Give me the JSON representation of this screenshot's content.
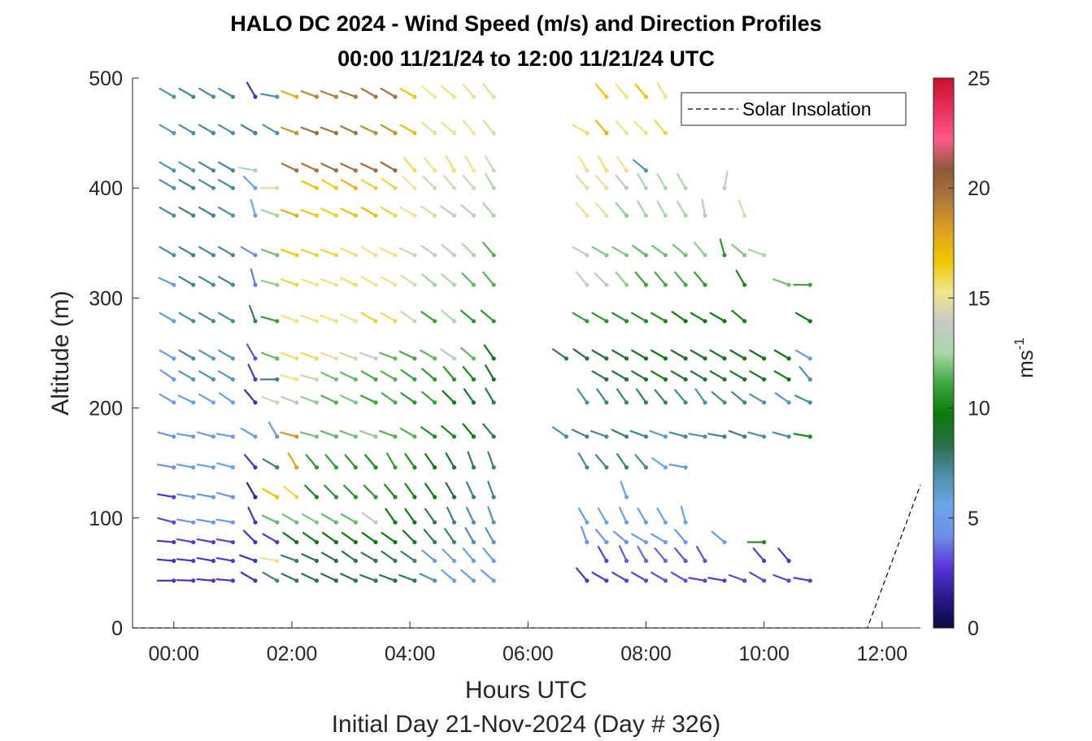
{
  "chart_data": {
    "type": "wind-barb-profile",
    "title": "HALO DC 2024 - Wind Speed (m/s) and Direction Profiles",
    "subtitle": "00:00 11/21/24 to 12:00 11/21/24  UTC",
    "xlabel": "Hours UTC",
    "xlabel2": "Initial Day 21-Nov-2024 (Day # 326)",
    "ylabel": "Altitude (m)",
    "xlim": [
      -0.7,
      12.65
    ],
    "ylim": [
      0,
      500
    ],
    "xticks": [
      0,
      2,
      4,
      6,
      8,
      10,
      12
    ],
    "xtick_labels": [
      "00:00",
      "02:00",
      "04:00",
      "06:00",
      "08:00",
      "10:00",
      "12:00"
    ],
    "yticks": [
      0,
      100,
      200,
      300,
      400,
      500
    ],
    "ytick_labels": [
      "0",
      "100",
      "200",
      "300",
      "400",
      "500"
    ],
    "colorbar": {
      "label": "ms",
      "label_exp": "-1",
      "range": [
        0,
        25
      ],
      "ticks": [
        0,
        5,
        10,
        15,
        20,
        25
      ],
      "tick_labels": [
        "0",
        "5",
        "10",
        "15",
        "20",
        "25"
      ],
      "colors": [
        "#0a0a3c",
        "#2a1a8c",
        "#5a35d8",
        "#6e8de8",
        "#6aa6e8",
        "#4d8fa8",
        "#2a6e4a",
        "#0a7a0a",
        "#3fa63f",
        "#a8d8a8",
        "#c8c8c8",
        "#f0e68c",
        "#f0c800",
        "#e0a020",
        "#b07838",
        "#8b5a3c",
        "#ff5a8c",
        "#e8305a",
        "#c8102e"
      ]
    },
    "legend": {
      "label": "Solar Insolation",
      "position": "top-right",
      "style": "dashed"
    },
    "solar_insolation": {
      "x": [
        -0.7,
        11.75,
        12.65
      ],
      "y": [
        0,
        0,
        130
      ]
    },
    "altitudes_m": [
      43,
      61,
      78,
      96,
      119,
      146,
      174,
      205,
      226,
      245,
      279,
      312,
      339,
      375,
      400,
      416,
      450,
      483
    ],
    "times_h": [
      0.0,
      0.33,
      0.67,
      1.0,
      1.38,
      1.75,
      2.08,
      2.42,
      2.75,
      3.08,
      3.42,
      3.75,
      4.08,
      4.42,
      4.75,
      5.08,
      5.42,
      6.65,
      7.0,
      7.33,
      7.67,
      8.0,
      8.33,
      8.67,
      9.0,
      9.33,
      9.67,
      10.0,
      10.42,
      10.78
    ],
    "speed_unit": "m/s",
    "barbs_note": "speed (m/s) and direction (deg, meteorological) per altitude row; null = no data",
    "speeds": [
      [
        2.6,
        2.5,
        2.5,
        2.6,
        2.4,
        7.4,
        8.0,
        8.2,
        8.5,
        8.4,
        8.2,
        8.4,
        8.0,
        6.8,
        5.0,
        5.0,
        5.0,
        null,
        2.6,
        2.8,
        2.9,
        3.0,
        3.2,
        3.2,
        3.0,
        2.8,
        3.0,
        3.1,
        3.0,
        2.8
      ],
      [
        2.4,
        2.6,
        2.5,
        2.7,
        2.3,
        15.2,
        7.8,
        8.4,
        8.4,
        8.2,
        8.1,
        8.0,
        7.6,
        6.0,
        5.4,
        5.2,
        5.0,
        null,
        null,
        3.0,
        3.4,
        3.6,
        3.5,
        3.2,
        3.2,
        null,
        null,
        2.8,
        2.6,
        null
      ],
      [
        2.5,
        2.8,
        2.7,
        2.9,
        2.4,
        2.6,
        9.2,
        9.4,
        9.6,
        9.8,
        9.7,
        9.5,
        9.0,
        8.0,
        7.6,
        7.0,
        6.6,
        null,
        4.4,
        4.5,
        4.4,
        4.8,
        4.7,
        4.6,
        null,
        4.8,
        null,
        10.2,
        null,
        null
      ],
      [
        3.0,
        4.6,
        4.8,
        4.9,
        2.4,
        11.6,
        11.8,
        12.0,
        11.6,
        11.6,
        13.6,
        9.8,
        9.4,
        8.0,
        7.6,
        7.0,
        6.6,
        null,
        5.8,
        5.6,
        5.0,
        5.8,
        5.6,
        5.6,
        null,
        null,
        null,
        null,
        null,
        null
      ],
      [
        2.8,
        4.6,
        4.8,
        4.6,
        1.6,
        16.8,
        16.0,
        10.2,
        10.6,
        10.6,
        10.6,
        10.2,
        10.0,
        9.4,
        8.6,
        7.6,
        7.4,
        null,
        null,
        null,
        5.6,
        null,
        null,
        null,
        null,
        null,
        null,
        null,
        null,
        null
      ],
      [
        4.6,
        5.6,
        5.4,
        5.4,
        2.4,
        7.6,
        18.0,
        10.8,
        10.8,
        10.6,
        10.2,
        10.8,
        10.2,
        9.6,
        9.0,
        8.0,
        7.6,
        null,
        7.2,
        7.4,
        7.6,
        7.2,
        5.4,
        5.8,
        null,
        null,
        null,
        null,
        null,
        null
      ],
      [
        4.6,
        5.0,
        5.0,
        5.0,
        5.2,
        6.0,
        18.4,
        11.8,
        11.6,
        11.8,
        12.2,
        11.4,
        11.4,
        10.4,
        10.2,
        9.6,
        8.0,
        7.0,
        7.4,
        7.2,
        7.6,
        7.4,
        6.2,
        7.2,
        6.8,
        7.4,
        7.6,
        6.8,
        7.0,
        10.2
      ],
      [
        4.8,
        5.2,
        5.6,
        5.0,
        2.2,
        14.4,
        13.2,
        12.2,
        11.4,
        12.0,
        11.0,
        11.2,
        10.6,
        11.0,
        9.8,
        8.8,
        8.0,
        null,
        7.0,
        7.4,
        7.6,
        7.8,
        7.6,
        7.4,
        7.0,
        7.2,
        7.4,
        6.8,
        6.6,
        7.2
      ],
      [
        4.8,
        6.6,
        6.8,
        6.4,
        2.6,
        7.6,
        15.4,
        14.4,
        11.8,
        11.6,
        11.2,
        11.4,
        11.0,
        10.6,
        10.6,
        10.2,
        9.2,
        null,
        null,
        8.2,
        8.6,
        9.0,
        9.4,
        9.0,
        8.6,
        8.8,
        9.2,
        9.0,
        9.6,
        6.8
      ],
      [
        5.2,
        7.2,
        6.4,
        6.4,
        3.2,
        11.6,
        15.6,
        15.8,
        15.0,
        14.6,
        14.0,
        11.6,
        11.2,
        11.6,
        13.0,
        11.6,
        9.2,
        8.0,
        8.4,
        8.6,
        8.8,
        9.2,
        9.6,
        9.0,
        8.8,
        9.2,
        9.4,
        9.6,
        9.6,
        5.2
      ],
      [
        6.0,
        7.0,
        7.2,
        7.0,
        7.8,
        10.8,
        15.4,
        15.4,
        15.4,
        15.2,
        16.2,
        15.8,
        14.4,
        11.0,
        12.8,
        10.6,
        10.6,
        null,
        10.8,
        10.6,
        10.4,
        10.4,
        10.2,
        9.8,
        9.8,
        9.6,
        10.0,
        null,
        null,
        9.8
      ],
      [
        6.0,
        7.4,
        7.2,
        7.4,
        3.8,
        12.2,
        16.0,
        15.4,
        15.4,
        15.6,
        15.4,
        15.2,
        14.6,
        12.4,
        12.6,
        11.6,
        11.4,
        null,
        13.8,
        13.6,
        12.2,
        11.0,
        11.2,
        11.2,
        10.8,
        null,
        10.2,
        null,
        11.8,
        11.0
      ],
      [
        7.0,
        7.4,
        7.2,
        7.2,
        4.2,
        11.8,
        16.6,
        16.2,
        16.0,
        15.6,
        15.2,
        15.4,
        14.4,
        14.0,
        13.6,
        12.6,
        11.4,
        null,
        13.4,
        12.0,
        12.0,
        11.6,
        11.8,
        11.8,
        12.2,
        10.6,
        12.0,
        12.6,
        null,
        null
      ],
      [
        7.0,
        7.4,
        7.4,
        6.8,
        5.4,
        12.4,
        17.6,
        16.6,
        16.4,
        16.8,
        17.0,
        16.0,
        15.2,
        14.8,
        13.8,
        13.4,
        12.6,
        null,
        15.2,
        15.0,
        12.2,
        12.4,
        12.6,
        12.6,
        12.8,
        null,
        14.6,
        null,
        null,
        null
      ],
      [
        6.8,
        7.4,
        7.0,
        7.2,
        5.4,
        14.8,
        null,
        16.8,
        16.4,
        17.4,
        16.2,
        16.0,
        15.2,
        14.4,
        14.6,
        14.4,
        13.2,
        null,
        14.8,
        15.0,
        13.6,
        12.6,
        12.6,
        13.2,
        null,
        13.6,
        null,
        null,
        null,
        null
      ],
      [
        6.8,
        6.8,
        7.2,
        7.2,
        12.8,
        null,
        19.8,
        19.6,
        20.0,
        19.8,
        20.0,
        20.2,
        15.8,
        15.4,
        15.6,
        15.2,
        14.4,
        null,
        15.4,
        15.6,
        15.2,
        6.8,
        null,
        null,
        null,
        null,
        null,
        null,
        null,
        null
      ],
      [
        6.4,
        7.0,
        7.2,
        7.0,
        7.4,
        6.8,
        18.6,
        20.0,
        19.8,
        19.6,
        18.8,
        18.6,
        17.0,
        15.0,
        15.4,
        15.2,
        14.8,
        null,
        15.6,
        17.4,
        15.2,
        15.4,
        16.0,
        null,
        null,
        null,
        null,
        null,
        null,
        null
      ],
      [
        6.8,
        7.4,
        7.0,
        7.2,
        2.4,
        6.8,
        17.6,
        19.0,
        19.2,
        19.6,
        19.8,
        19.8,
        16.6,
        15.2,
        15.4,
        15.0,
        14.8,
        null,
        null,
        16.6,
        15.4,
        16.8,
        15.4,
        null,
        null,
        null,
        null,
        null,
        null,
        null
      ]
    ],
    "directions_deg": [
      [
        270,
        272,
        275,
        275,
        300,
        300,
        295,
        295,
        295,
        295,
        290,
        290,
        290,
        295,
        310,
        310,
        310,
        null,
        320,
        300,
        300,
        300,
        300,
        300,
        280,
        280,
        290,
        300,
        290,
        280
      ],
      [
        275,
        276,
        280,
        280,
        290,
        280,
        290,
        295,
        300,
        305,
        300,
        305,
        305,
        310,
        315,
        320,
        320,
        null,
        null,
        330,
        335,
        330,
        320,
        320,
        330,
        null,
        null,
        320,
        320,
        null
      ],
      [
        275,
        280,
        280,
        280,
        315,
        300,
        305,
        305,
        305,
        305,
        305,
        305,
        315,
        320,
        325,
        330,
        330,
        null,
        340,
        320,
        310,
        300,
        300,
        320,
        null,
        310,
        null,
        270,
        null,
        null
      ],
      [
        285,
        280,
        280,
        280,
        335,
        295,
        300,
        300,
        300,
        300,
        305,
        325,
        325,
        325,
        335,
        335,
        340,
        null,
        330,
        330,
        335,
        330,
        330,
        345,
        null,
        null,
        null,
        null,
        null,
        null
      ],
      [
        280,
        280,
        280,
        285,
        330,
        300,
        310,
        315,
        315,
        315,
        315,
        320,
        325,
        325,
        330,
        335,
        340,
        null,
        null,
        null,
        340,
        null,
        null,
        null,
        null,
        null,
        null,
        null,
        null,
        null
      ],
      [
        280,
        280,
        280,
        285,
        320,
        300,
        330,
        320,
        320,
        320,
        320,
        330,
        325,
        325,
        330,
        340,
        340,
        null,
        330,
        320,
        325,
        320,
        305,
        280,
        null,
        null,
        null,
        null,
        null,
        null
      ],
      [
        285,
        280,
        285,
        280,
        300,
        330,
        285,
        285,
        290,
        290,
        290,
        290,
        300,
        305,
        310,
        320,
        320,
        305,
        295,
        290,
        295,
        290,
        290,
        285,
        280,
        280,
        290,
        285,
        285,
        280
      ],
      [
        300,
        295,
        300,
        305,
        320,
        290,
        290,
        290,
        295,
        295,
        295,
        305,
        305,
        310,
        315,
        325,
        330,
        null,
        325,
        325,
        325,
        325,
        320,
        320,
        325,
        310,
        310,
        300,
        305,
        295
      ],
      [
        305,
        300,
        300,
        300,
        335,
        270,
        285,
        285,
        295,
        295,
        300,
        300,
        305,
        310,
        320,
        320,
        330,
        null,
        null,
        300,
        300,
        300,
        300,
        300,
        300,
        300,
        300,
        300,
        300,
        320
      ],
      [
        300,
        300,
        300,
        300,
        330,
        290,
        290,
        290,
        290,
        290,
        290,
        290,
        295,
        300,
        305,
        310,
        325,
        305,
        305,
        300,
        300,
        300,
        300,
        300,
        300,
        300,
        300,
        300,
        300,
        300
      ],
      [
        300,
        300,
        300,
        300,
        340,
        285,
        290,
        290,
        290,
        295,
        300,
        300,
        305,
        305,
        310,
        310,
        310,
        null,
        300,
        300,
        300,
        300,
        300,
        305,
        300,
        300,
        310,
        null,
        null,
        300
      ],
      [
        295,
        300,
        300,
        300,
        345,
        285,
        290,
        290,
        290,
        295,
        300,
        300,
        305,
        310,
        310,
        315,
        320,
        null,
        320,
        315,
        320,
        320,
        320,
        320,
        320,
        null,
        330,
        null,
        290,
        270
      ],
      [
        300,
        300,
        300,
        300,
        300,
        290,
        290,
        290,
        290,
        295,
        300,
        295,
        295,
        305,
        310,
        315,
        320,
        null,
        300,
        300,
        300,
        305,
        305,
        310,
        320,
        345,
        310,
        290,
        null,
        null
      ],
      [
        300,
        300,
        300,
        300,
        345,
        290,
        290,
        290,
        295,
        295,
        300,
        300,
        300,
        305,
        305,
        310,
        320,
        null,
        320,
        320,
        320,
        330,
        330,
        330,
        350,
        null,
        340,
        null,
        null,
        null
      ],
      [
        300,
        300,
        300,
        300,
        315,
        270,
        null,
        295,
        300,
        300,
        300,
        305,
        315,
        315,
        320,
        320,
        330,
        null,
        320,
        320,
        320,
        330,
        330,
        330,
        null,
        10,
        null,
        null,
        null,
        null
      ],
      [
        300,
        300,
        300,
        300,
        280,
        null,
        295,
        295,
        295,
        295,
        295,
        300,
        320,
        320,
        330,
        330,
        330,
        null,
        330,
        330,
        325,
        310,
        null,
        null,
        null,
        null,
        null,
        null,
        null,
        null
      ],
      [
        300,
        300,
        300,
        300,
        300,
        300,
        290,
        290,
        290,
        295,
        295,
        300,
        300,
        310,
        310,
        320,
        320,
        null,
        300,
        320,
        320,
        315,
        320,
        null,
        null,
        null,
        null,
        null,
        null,
        null
      ],
      [
        300,
        300,
        300,
        300,
        330,
        280,
        290,
        290,
        290,
        290,
        300,
        300,
        300,
        310,
        310,
        320,
        320,
        null,
        null,
        320,
        320,
        320,
        330,
        null,
        null,
        null,
        null,
        null,
        null,
        null
      ]
    ]
  }
}
